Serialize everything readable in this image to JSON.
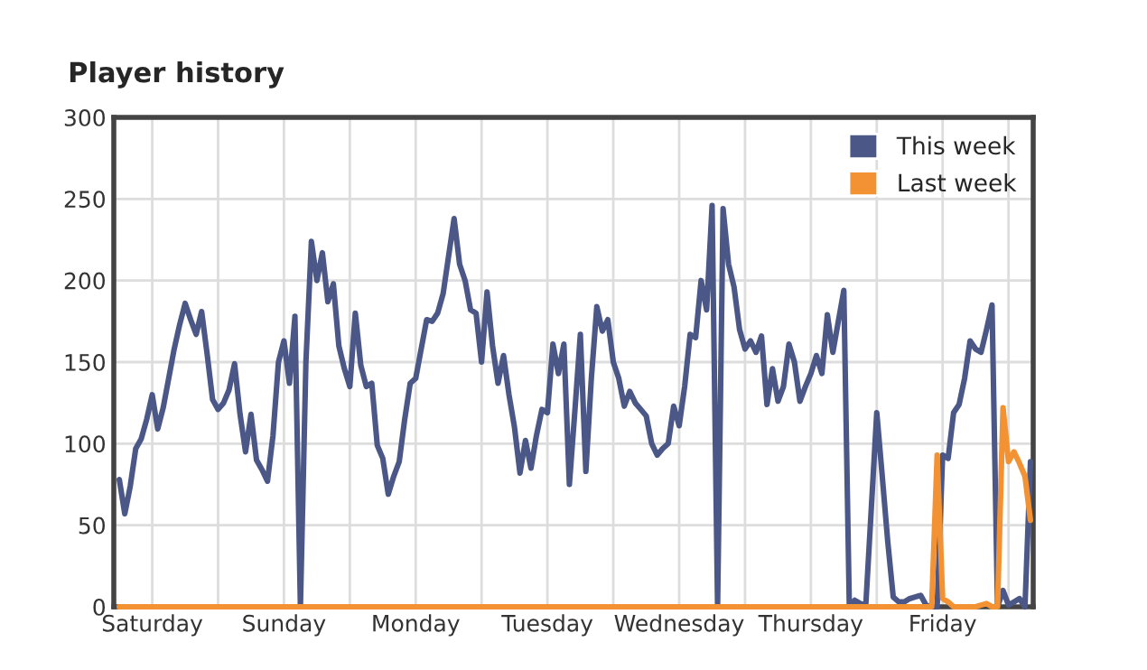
{
  "chart_data": {
    "type": "line",
    "title": "Player history",
    "categories": [
      null,
      null,
      null,
      null,
      null,
      null,
      "Saturday",
      null,
      null,
      null,
      null,
      null,
      null,
      null,
      null,
      null,
      null,
      null,
      null,
      null,
      null,
      null,
      null,
      null,
      null,
      null,
      null,
      null,
      null,
      null,
      "Sunday",
      null,
      null,
      null,
      null,
      null,
      null,
      null,
      null,
      null,
      null,
      null,
      null,
      null,
      null,
      null,
      null,
      null,
      null,
      null,
      null,
      null,
      null,
      null,
      "Monday",
      null,
      null,
      null,
      null,
      null,
      null,
      null,
      null,
      null,
      null,
      null,
      null,
      null,
      null,
      null,
      null,
      null,
      null,
      null,
      null,
      null,
      null,
      null,
      "Tuesday",
      null,
      null,
      null,
      null,
      null,
      null,
      null,
      null,
      null,
      null,
      null,
      null,
      null,
      null,
      null,
      null,
      null,
      null,
      null,
      null,
      null,
      null,
      null,
      "Wednesday",
      null,
      null,
      null,
      null,
      null,
      null,
      null,
      null,
      null,
      null,
      null,
      null,
      null,
      null,
      null,
      null,
      null,
      null,
      null,
      null,
      null,
      null,
      null,
      "Thursday",
      null,
      null,
      null,
      null,
      null,
      null,
      null,
      null,
      null,
      null,
      null,
      null,
      null,
      null,
      null,
      null,
      null,
      null,
      null,
      null,
      null,
      null,
      null,
      "Friday",
      null,
      null,
      null,
      null,
      null,
      null,
      null,
      null,
      null,
      null,
      null,
      null,
      null,
      null,
      null,
      null
    ],
    "ylim": [
      0,
      300
    ],
    "yticks": [
      0,
      50,
      100,
      150,
      200,
      250,
      300
    ],
    "grid": true,
    "legend": "top right",
    "marker": "none",
    "line_style": "solid",
    "series": [
      {
        "name": "This week",
        "color": "#4b5887",
        "values": [
          78,
          57,
          74,
          97,
          103,
          115,
          130,
          109,
          122,
          140,
          158,
          173,
          186,
          176,
          167,
          181,
          155,
          127,
          121,
          125,
          133,
          149,
          118,
          95,
          118,
          90,
          84,
          77,
          105,
          150,
          163,
          137,
          178,
          0,
          150,
          224,
          200,
          217,
          187,
          198,
          160,
          146,
          135,
          180,
          148,
          135,
          137,
          99,
          91,
          69,
          80,
          89,
          115,
          137,
          140,
          158,
          176,
          175,
          180,
          192,
          215,
          238,
          210,
          200,
          182,
          180,
          150,
          193,
          160,
          137,
          154,
          130,
          110,
          82,
          102,
          85,
          105,
          121,
          119,
          161,
          143,
          161,
          75,
          120,
          167,
          83,
          140,
          184,
          169,
          176,
          150,
          140,
          123,
          132,
          125,
          121,
          117,
          100,
          93,
          97,
          100,
          123,
          111,
          135,
          167,
          165,
          200,
          182,
          246,
          0,
          244,
          210,
          196,
          170,
          158,
          163,
          156,
          166,
          124,
          146,
          126,
          135,
          161,
          150,
          126,
          135,
          143,
          154,
          143,
          179,
          156,
          175,
          194,
          0,
          4,
          2,
          1,
          60,
          119,
          80,
          40,
          6,
          3,
          3,
          5,
          6,
          7,
          1,
          0,
          0,
          93,
          91,
          119,
          124,
          140,
          163,
          158,
          156,
          170,
          185,
          0,
          10,
          1,
          3,
          5,
          0,
          89
        ]
      },
      {
        "name": "Last week",
        "color": "#f39232",
        "values": [
          0,
          0,
          0,
          0,
          0,
          0,
          0,
          0,
          0,
          0,
          0,
          0,
          0,
          0,
          0,
          0,
          0,
          0,
          0,
          0,
          0,
          0,
          0,
          0,
          0,
          0,
          0,
          0,
          0,
          0,
          0,
          0,
          0,
          0,
          0,
          0,
          0,
          0,
          0,
          0,
          0,
          0,
          0,
          0,
          0,
          0,
          0,
          0,
          0,
          0,
          0,
          0,
          0,
          0,
          0,
          0,
          0,
          0,
          0,
          0,
          0,
          0,
          0,
          0,
          0,
          0,
          0,
          0,
          0,
          0,
          0,
          0,
          0,
          0,
          0,
          0,
          0,
          0,
          0,
          0,
          0,
          0,
          0,
          0,
          0,
          0,
          0,
          0,
          0,
          0,
          0,
          0,
          0,
          0,
          0,
          0,
          0,
          0,
          0,
          0,
          0,
          0,
          0,
          0,
          0,
          0,
          0,
          0,
          0,
          0,
          0,
          0,
          0,
          0,
          0,
          0,
          0,
          0,
          0,
          0,
          0,
          0,
          0,
          0,
          0,
          0,
          0,
          0,
          0,
          0,
          0,
          0,
          0,
          0,
          0,
          0,
          0,
          0,
          0,
          0,
          0,
          0,
          0,
          0,
          0,
          0,
          0,
          0,
          0,
          93,
          5,
          3,
          0,
          0,
          0,
          0,
          0,
          1,
          2,
          0,
          0,
          122,
          89,
          95,
          88,
          80,
          53
        ]
      }
    ]
  }
}
